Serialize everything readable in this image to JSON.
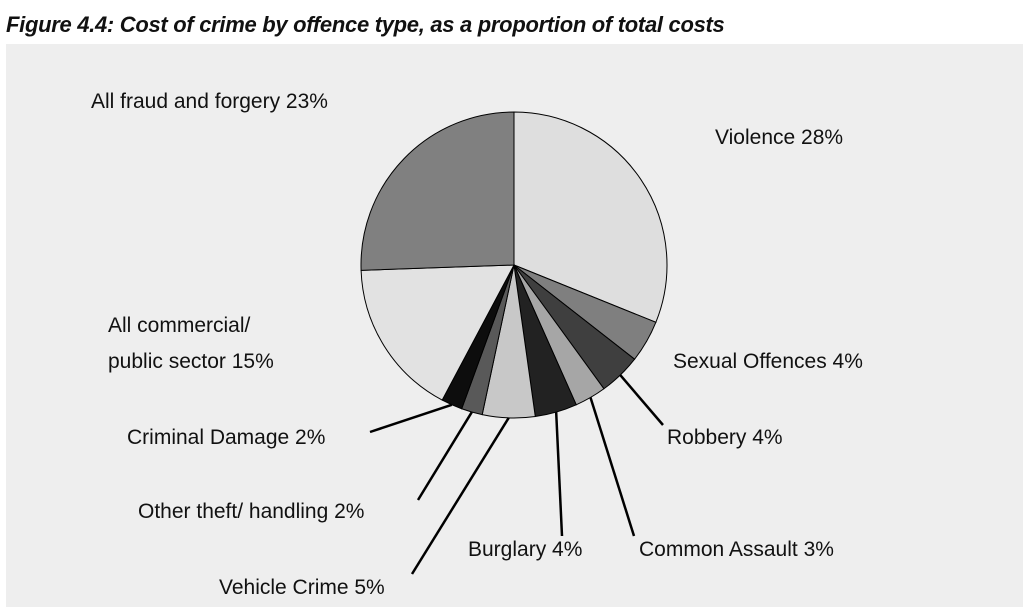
{
  "chart_data": {
    "type": "pie",
    "title": "Figure 4.4: Cost of crime by offence type, as a proportion of total costs",
    "slices": [
      {
        "label": "Violence 28%",
        "value": 28,
        "color": "#dedede"
      },
      {
        "label": "Sexual Offences 4%",
        "value": 4,
        "color": "#7f7f7f"
      },
      {
        "label": "Robbery 4%",
        "value": 4,
        "color": "#3f3f3f"
      },
      {
        "label": "Common Assault 3%",
        "value": 3,
        "color": "#a6a6a6"
      },
      {
        "label": "Burglary 4%",
        "value": 4,
        "color": "#222222"
      },
      {
        "label": "Vehicle Crime 5%",
        "value": 5,
        "color": "#c8c8c8"
      },
      {
        "label": "Other theft/ handling 2%",
        "value": 2,
        "color": "#595959"
      },
      {
        "label": "Criminal Damage 2%",
        "value": 2,
        "color": "#0d0d0d"
      },
      {
        "label_lines": [
          "All commercial/",
          "public sector 15%"
        ],
        "value": 15,
        "color": "#e2e2e2"
      },
      {
        "label": "All fraud and forgery 23%",
        "value": 23,
        "color": "#808080"
      }
    ]
  }
}
